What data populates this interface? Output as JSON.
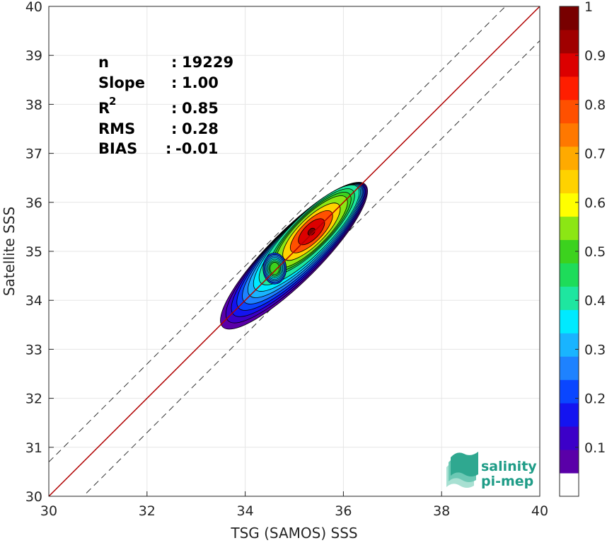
{
  "chart_data": {
    "type": "contour-scatter",
    "xlabel": "TSG (SAMOS) SSS",
    "ylabel": "Satellite SSS",
    "xlim": [
      30,
      40
    ],
    "ylim": [
      30,
      40
    ],
    "xticks": [
      30,
      32,
      34,
      36,
      38,
      40
    ],
    "yticks": [
      30,
      31,
      32,
      33,
      34,
      35,
      36,
      37,
      38,
      39,
      40
    ],
    "grid": true,
    "reference_line": {
      "slope": 1,
      "intercept": 0,
      "color": "#b00000"
    },
    "dashed_lines": [
      {
        "slope": 1,
        "intercept": 0.7
      },
      {
        "slope": 1,
        "intercept": -0.7
      }
    ],
    "stats": [
      {
        "label": "n",
        "sep": ":",
        "value": "19229"
      },
      {
        "label": "Slope",
        "sep": ":",
        "value": "1.00"
      },
      {
        "label": "R",
        "sup": "2",
        "sep": ":",
        "value": "0.85"
      },
      {
        "label": "RMS",
        "sep": ":",
        "value": "0.28"
      },
      {
        "label": "BIAS",
        "sep": ":",
        "value": "-0.01"
      }
    ],
    "density_center": [
      35.35,
      35.4
    ],
    "secondary_peak": [
      34.6,
      34.65
    ],
    "colorbar": {
      "range": [
        0,
        1
      ],
      "ticks": [
        0.1,
        0.2,
        0.3,
        0.4,
        0.5,
        0.6,
        0.7,
        0.8,
        0.9,
        1
      ],
      "tick_labels": [
        "0.1",
        "0.2",
        "0.3",
        "0.4",
        "0.5",
        "0.6",
        "0.7",
        "0.8",
        "0.9",
        "1"
      ],
      "colors": [
        "#ffffff",
        "#5a00a8",
        "#3c00c8",
        "#1414f0",
        "#0a46ff",
        "#1e82ff",
        "#19b4ff",
        "#00eaff",
        "#1ee6a0",
        "#1edc5a",
        "#3cd21e",
        "#8ce614",
        "#ffff00",
        "#ffd200",
        "#ffaa00",
        "#ff7800",
        "#ff5000",
        "#ff1e00",
        "#dc0000",
        "#a00000",
        "#780000"
      ]
    },
    "density_levels": [
      {
        "level": 0.05,
        "color": "#5a00a8"
      },
      {
        "level": 0.1,
        "color": "#3c00c8"
      },
      {
        "level": 0.15,
        "color": "#1414f0"
      },
      {
        "level": 0.2,
        "color": "#0a46ff"
      },
      {
        "level": 0.25,
        "color": "#1e82ff"
      },
      {
        "level": 0.3,
        "color": "#19b4ff"
      },
      {
        "level": 0.35,
        "color": "#00eaff"
      },
      {
        "level": 0.4,
        "color": "#1ee6a0"
      },
      {
        "level": 0.5,
        "color": "#1edc5a"
      },
      {
        "level": 0.55,
        "color": "#3cd21e"
      },
      {
        "level": 0.6,
        "color": "#8ce614"
      },
      {
        "level": 0.7,
        "color": "#ffd200"
      },
      {
        "level": 0.8,
        "color": "#ff5000"
      },
      {
        "level": 0.9,
        "color": "#dc0000"
      },
      {
        "level": 1.0,
        "color": "#780000"
      }
    ]
  },
  "logo": {
    "line1": "salinity",
    "line2": "pi-mep",
    "color": "#1f9c87"
  }
}
